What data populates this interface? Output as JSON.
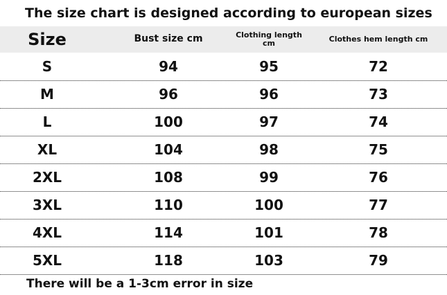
{
  "title": "The size chart is designed according to european sizes",
  "table": {
    "header": [
      "Size",
      "Bust size cm",
      "Clothing length cm",
      "Clothes hem length cm"
    ],
    "rows": [
      [
        "S",
        "94",
        "95",
        "72"
      ],
      [
        "M",
        "96",
        "96",
        "73"
      ],
      [
        "L",
        "100",
        "97",
        "74"
      ],
      [
        "XL",
        "104",
        "98",
        "75"
      ],
      [
        "2XL",
        "108",
        "99",
        "76"
      ],
      [
        "3XL",
        "110",
        "100",
        "77"
      ],
      [
        "4XL",
        "114",
        "101",
        "78"
      ],
      [
        "5XL",
        "118",
        "103",
        "79"
      ]
    ]
  },
  "footnote": "There will be a 1-3cm error in size"
}
